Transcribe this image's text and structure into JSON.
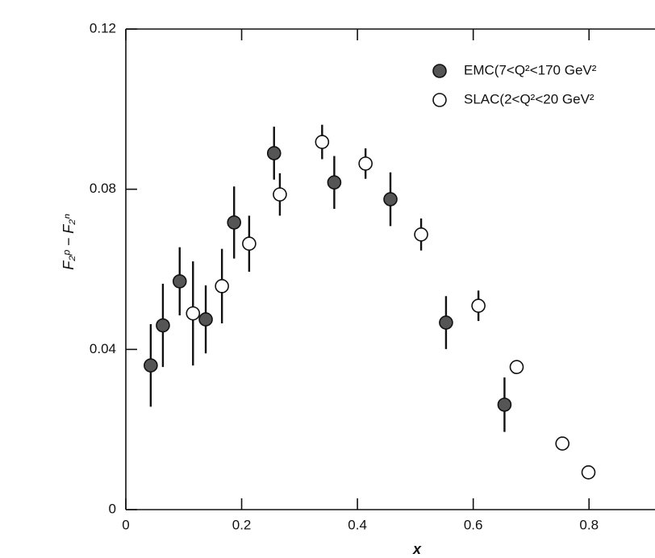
{
  "chart_data": {
    "type": "scatter",
    "x_label": "x",
    "y_label": "F₂ᵖ − F₂ⁿ",
    "xlim": [
      0,
      0.9
    ],
    "ylim": [
      0,
      0.12
    ],
    "xticks": [
      0,
      0.2,
      0.4,
      0.6,
      0.8
    ],
    "yticks": [
      0,
      0.04,
      0.08,
      0.12
    ],
    "legend": "top-right",
    "series": [
      {
        "name": "EMC(7<Q²<170 GeV²",
        "color": "#555555",
        "filled": true,
        "x": [
          0.043,
          0.064,
          0.093,
          0.138,
          0.187,
          0.256,
          0.36,
          0.457,
          0.553,
          0.654
        ],
        "values": [
          0.036,
          0.046,
          0.057,
          0.0475,
          0.0717,
          0.089,
          0.0817,
          0.0775,
          0.0467,
          0.0262
        ],
        "errors": [
          0.0103,
          0.0104,
          0.0085,
          0.0085,
          0.009,
          0.0066,
          0.0066,
          0.0067,
          0.0066,
          0.0068
        ]
      },
      {
        "name": "SLAC(2<Q²<20 GeV²",
        "color": "#ffffff",
        "filled": false,
        "x": [
          0.116,
          0.166,
          0.213,
          0.266,
          0.339,
          0.414,
          0.51,
          0.609,
          0.675,
          0.754,
          0.799
        ],
        "values": [
          0.049,
          0.0558,
          0.0664,
          0.0787,
          0.0918,
          0.0864,
          0.0687,
          0.0509,
          0.0356,
          0.0165,
          0.0093
        ],
        "errors": [
          0.013,
          0.0093,
          0.007,
          0.0053,
          0.0043,
          0.0038,
          0.004,
          0.0038,
          null,
          null,
          null
        ]
      }
    ]
  }
}
